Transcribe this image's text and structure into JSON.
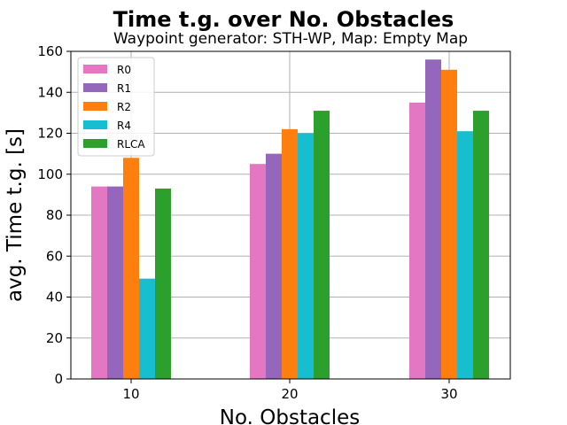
{
  "chart_data": {
    "type": "bar",
    "title": "Time t.g. over No. Obstacles",
    "subtitle": "Waypoint generator: STH-WP, Map: Empty Map",
    "xlabel": "No. Obstacles",
    "ylabel": "avg. Time t.g. [s]",
    "categories": [
      "10",
      "20",
      "30"
    ],
    "ylim": [
      0,
      160
    ],
    "yticks": [
      "0",
      "20",
      "40",
      "60",
      "80",
      "100",
      "120",
      "140",
      "160"
    ],
    "grid": true,
    "legend_position": "upper-left",
    "series": [
      {
        "name": "R0",
        "color": "#e377c2",
        "values": [
          94,
          105,
          135
        ]
      },
      {
        "name": "R1",
        "color": "#9467bd",
        "values": [
          94,
          110,
          156
        ]
      },
      {
        "name": "R2",
        "color": "#ff7f0e",
        "values": [
          108,
          122,
          151
        ]
      },
      {
        "name": "R4",
        "color": "#17becf",
        "values": [
          49,
          120,
          121
        ]
      },
      {
        "name": "RLCA",
        "color": "#2ca02c",
        "values": [
          93,
          131,
          131
        ]
      }
    ]
  }
}
